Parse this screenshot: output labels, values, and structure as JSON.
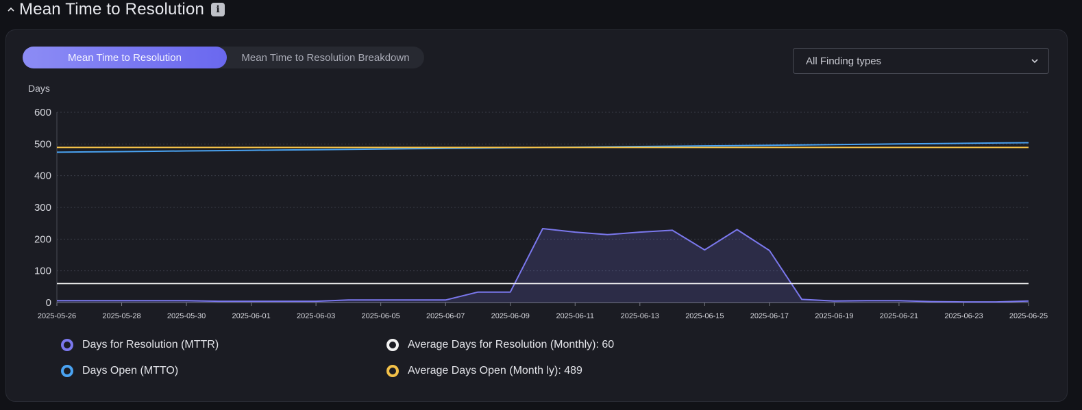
{
  "header": {
    "title": "Mean Time to Resolution",
    "info_icon": "i"
  },
  "toggle": {
    "options": [
      "Mean Time to Resolution",
      "Mean Time to Resolution Breakdown"
    ],
    "selected": "Mean Time to Resolution"
  },
  "filter": {
    "selected": "All Finding types"
  },
  "colors": {
    "mttr": "#7b78ee",
    "mtto": "#4aa3f2",
    "avg_mttr": "#f2f2f2",
    "avg_mtto": "#f2c048"
  },
  "chart_data": {
    "type": "line",
    "ylabel": "Days",
    "ylim": [
      0,
      600
    ],
    "yticks": [
      "600",
      "500",
      "400",
      "300",
      "200",
      "100",
      "0"
    ],
    "grid": true,
    "legend_position": "bottom",
    "x": [
      "2025-05-26",
      "2025-05-27",
      "2025-05-28",
      "2025-05-29",
      "2025-05-30",
      "2025-05-31",
      "2025-06-01",
      "2025-06-02",
      "2025-06-03",
      "2025-06-04",
      "2025-06-05",
      "2025-06-06",
      "2025-06-07",
      "2025-06-08",
      "2025-06-09",
      "2025-06-10",
      "2025-06-11",
      "2025-06-12",
      "2025-06-13",
      "2025-06-14",
      "2025-06-15",
      "2025-06-16",
      "2025-06-17",
      "2025-06-18",
      "2025-06-19",
      "2025-06-20",
      "2025-06-21",
      "2025-06-22",
      "2025-06-23",
      "2025-06-24",
      "2025-06-25"
    ],
    "xticks": [
      "2025-05-26",
      "2025-05-28",
      "2025-05-30",
      "2025-06-01",
      "2025-06-03",
      "2025-06-05",
      "2025-06-07",
      "2025-06-09",
      "2025-06-11",
      "2025-06-13",
      "2025-06-15",
      "2025-06-17",
      "2025-06-19",
      "2025-06-21",
      "2025-06-23",
      "2025-06-25"
    ],
    "series": [
      {
        "name": "Days for Resolution (MTTR)",
        "key": "mttr",
        "fill": true,
        "values": [
          6,
          6,
          6,
          6,
          6,
          4,
          4,
          4,
          4,
          8,
          8,
          8,
          8,
          33,
          33,
          233,
          222,
          214,
          222,
          228,
          166,
          230,
          164,
          10,
          5,
          6,
          6,
          3,
          2,
          2,
          5
        ]
      },
      {
        "name": "Days Open (MTTO)",
        "key": "mtto",
        "fill": false,
        "values": [
          474,
          475,
          476,
          477,
          478,
          479,
          480,
          481,
          482,
          483,
          484,
          485,
          486,
          487,
          488,
          489,
          490,
          491,
          492,
          493,
          494,
          495,
          496,
          497,
          498,
          499,
          500,
          501,
          502,
          503,
          504
        ]
      },
      {
        "name": "Average Days for Resolution (Monthly): 60",
        "key": "avg_mttr",
        "fill": false,
        "values": [
          60,
          60,
          60,
          60,
          60,
          60,
          60,
          60,
          60,
          60,
          60,
          60,
          60,
          60,
          60,
          60,
          60,
          60,
          60,
          60,
          60,
          60,
          60,
          60,
          60,
          60,
          60,
          60,
          60,
          60,
          60
        ]
      },
      {
        "name": "Average Days Open (Month ly): 489",
        "key": "avg_mtto",
        "fill": false,
        "values": [
          489,
          489,
          489,
          489,
          489,
          489,
          489,
          489,
          489,
          489,
          489,
          489,
          489,
          489,
          489,
          489,
          489,
          489,
          489,
          489,
          489,
          489,
          489,
          489,
          489,
          489,
          489,
          489,
          489,
          489,
          489
        ]
      }
    ]
  },
  "legend": [
    {
      "label": "Days for Resolution (MTTR)",
      "key": "mttr"
    },
    {
      "label": "Days Open (MTTO)",
      "key": "mtto"
    },
    {
      "label": "Average Days for Resolution (Monthly): 60",
      "key": "avg_mttr"
    },
    {
      "label": "Average Days Open (Month ly): 489",
      "key": "avg_mtto"
    }
  ]
}
